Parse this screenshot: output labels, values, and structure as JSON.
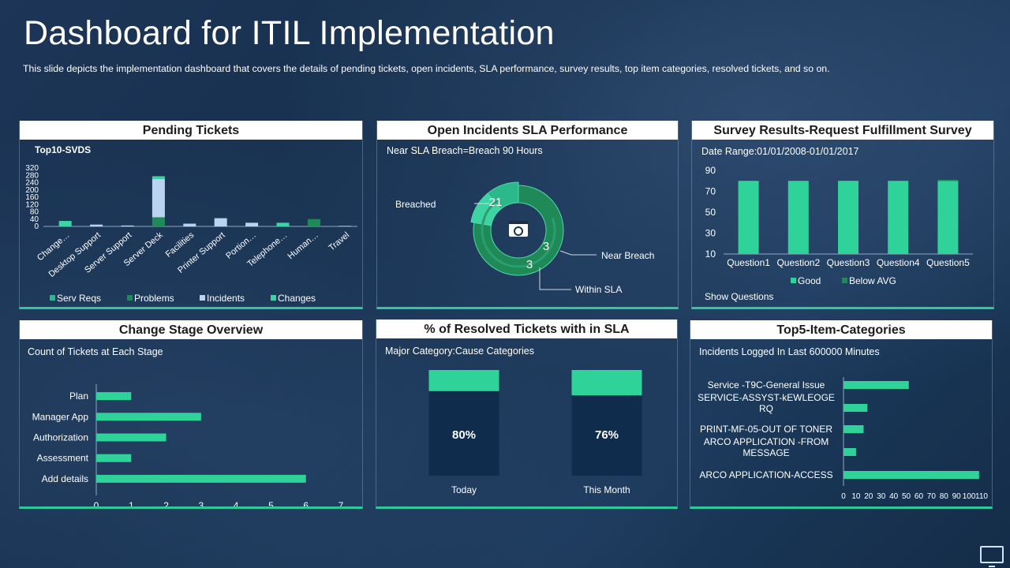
{
  "page": {
    "title": "Dashboard for ITIL Implementation",
    "subtitle": "This slide depicts the implementation dashboard that covers the details of pending tickets, open incidents, SLA performance,  survey results, top item categories, resolved tickets, and so on."
  },
  "colors": {
    "accent": "#2fc89a",
    "dark_green": "#1f8a58",
    "light_blue": "#b9d3f0",
    "teal": "#2bb88a",
    "navy_bar": "#0f2c4d",
    "panel_bg": "#1a3656"
  },
  "panels": {
    "pending": {
      "header": "Pending Tickets"
    },
    "sla": {
      "header": "Open Incidents SLA Performance"
    },
    "survey": {
      "header": "Survey Results-Request Fulfillment  Survey"
    },
    "stage": {
      "header": "Change Stage Overview"
    },
    "resolved": {
      "header": "% of Resolved Tickets with in SLA"
    },
    "top5": {
      "header": "Top5-Item-Categories"
    }
  },
  "icons": {
    "corner": "monitor-icon",
    "donut_center": "gear-calendar-icon"
  },
  "chart_data": [
    {
      "id": "pending",
      "type": "bar",
      "subtitle": "Top10-SVDS",
      "categories": [
        "Change…",
        "Desktop Support",
        "Server Support",
        "Server Deck",
        "Facilities",
        "Printer Support",
        "Portion…",
        "Telephone…",
        "Human…",
        "Travel"
      ],
      "series": [
        {
          "name": "Serv Reqs",
          "values": [
            0,
            0,
            0,
            0,
            0,
            0,
            0,
            0,
            0,
            0
          ],
          "color": "#2bb88a"
        },
        {
          "name": "Problems",
          "values": [
            0,
            0,
            0,
            50,
            0,
            0,
            0,
            0,
            40,
            0
          ],
          "color": "#1f8a58"
        },
        {
          "name": "Incidents",
          "values": [
            0,
            10,
            5,
            210,
            15,
            45,
            20,
            0,
            0,
            3
          ],
          "color": "#b9d3f0"
        },
        {
          "name": "Changes",
          "values": [
            30,
            0,
            0,
            15,
            0,
            0,
            0,
            20,
            0,
            0
          ],
          "color": "#3ed3a2"
        }
      ],
      "yticks": [
        "320",
        "280",
        "240",
        "200",
        "160",
        "120",
        "80",
        "40",
        "0"
      ],
      "ylim": [
        0,
        320
      ]
    },
    {
      "id": "sla",
      "type": "pie",
      "subtitle": "Near SLA Breach=Breach  90 Hours",
      "slices": [
        {
          "label": "Breached",
          "value": 21,
          "color": "#1f8a58"
        },
        {
          "label": "Near Breach",
          "value": 3,
          "color": "#3ed3a2"
        },
        {
          "label": "Within SLA",
          "value": 3,
          "color": "#2bb88a"
        }
      ]
    },
    {
      "id": "survey",
      "type": "bar",
      "subtitle": "Date Range:01/01/2008-01/01/2017",
      "categories": [
        "Question1",
        "Question2",
        "Question3",
        "Question4",
        "Question5"
      ],
      "series": [
        {
          "name": "Good",
          "values": [
            80,
            80,
            80,
            80,
            80
          ],
          "color": "#2fd399"
        },
        {
          "name": "Below AVG",
          "values": [
            0,
            0,
            0,
            0,
            1
          ],
          "color": "#1f8a58"
        }
      ],
      "yticks": [
        "90",
        "70",
        "50",
        "30",
        "10"
      ],
      "ylim": [
        10,
        90
      ],
      "footer": "Show Questions"
    },
    {
      "id": "stage",
      "type": "bar",
      "orientation": "horizontal",
      "subtitle": "Count of Tickets at Each Stage",
      "categories": [
        "Plan",
        "Manager App",
        "Authorization",
        "Assessment",
        "Add details"
      ],
      "values": [
        1,
        3,
        2,
        1,
        6
      ],
      "xticks": [
        "0",
        "1",
        "2",
        "3",
        "4",
        "5",
        "6",
        "7"
      ],
      "xlim": [
        0,
        7
      ]
    },
    {
      "id": "resolved",
      "type": "bar",
      "subtitle": "Major Category:Cause Categories",
      "categories": [
        "Today",
        "This Month"
      ],
      "values": [
        80,
        76
      ],
      "labels": [
        "80%",
        "76%"
      ]
    },
    {
      "id": "top5",
      "type": "bar",
      "orientation": "horizontal",
      "subtitle": "Incidents Logged In Last 600000 Minutes",
      "categories": [
        "Service -T9C-General Issue",
        "SERVICE-ASSYST-kEWLEOGE RQ",
        "PRINT-MF-05-OUT OF TONER",
        "ARCO APPLICATION -FROM MESSAGE",
        "ARCO APPLICATION-ACCESS"
      ],
      "values": [
        52,
        19,
        16,
        10,
        108
      ],
      "xticks": [
        "0",
        "10",
        "20",
        "30",
        "40",
        "50",
        "60",
        "70",
        "80",
        "90",
        "100",
        "110"
      ],
      "xlim": [
        0,
        110
      ]
    }
  ]
}
